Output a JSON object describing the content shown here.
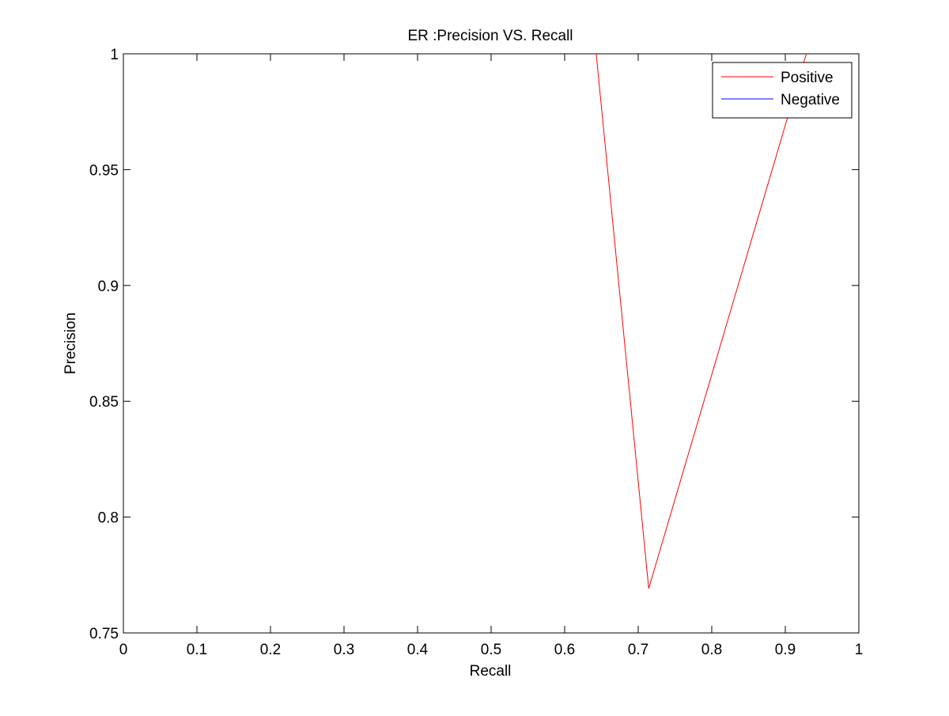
{
  "chart_data": {
    "type": "line",
    "title": "ER :Precision VS. Recall",
    "xlabel": "Recall",
    "ylabel": "Precision",
    "xlim": [
      0,
      1
    ],
    "ylim": [
      0.75,
      1
    ],
    "xticks": [
      0,
      0.1,
      0.2,
      0.3,
      0.4,
      0.5,
      0.6,
      0.7,
      0.8,
      0.9,
      1
    ],
    "xtick_labels": [
      "0",
      "0.1",
      "0.2",
      "0.3",
      "0.4",
      "0.5",
      "0.6",
      "0.7",
      "0.8",
      "0.9",
      "1"
    ],
    "yticks": [
      0.75,
      0.8,
      0.85,
      0.9,
      0.95,
      1
    ],
    "ytick_labels": [
      "0.75",
      "0.8",
      "0.85",
      "0.9",
      "0.95",
      "1"
    ],
    "grid": false,
    "legend_position": "top-right",
    "series": [
      {
        "name": "Positive",
        "color": "#ff0000",
        "x": [
          0.6429,
          0.7143,
          0.9286
        ],
        "y": [
          1.0,
          0.7692,
          1.0
        ]
      },
      {
        "name": "Negative",
        "color": "#0000ff",
        "x": [],
        "y": []
      }
    ]
  }
}
